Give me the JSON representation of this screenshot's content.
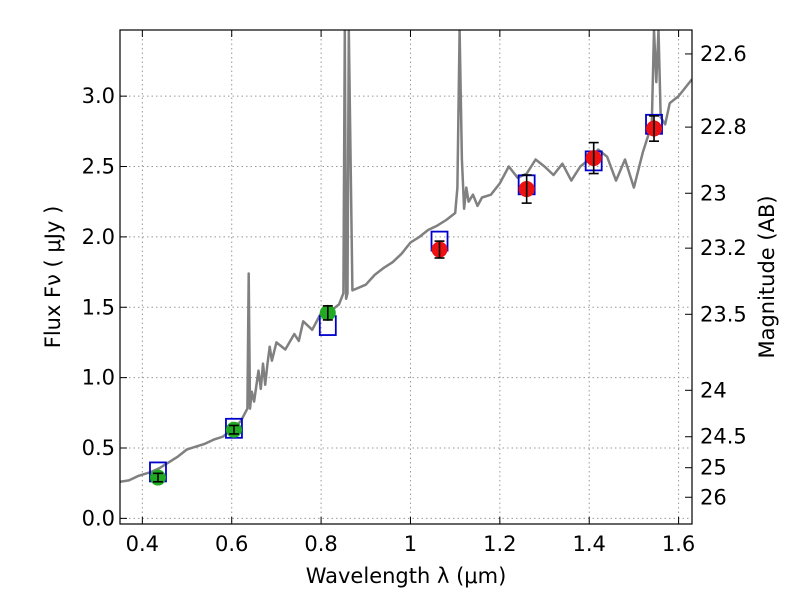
{
  "chart_data": {
    "type": "scatter",
    "title": "",
    "xlabel": "Wavelength  λ (μm)",
    "ylabel": "Flux  Fν  ( μJy )",
    "y2label": "Magnitude (AB)",
    "xlim": [
      0.35,
      1.63
    ],
    "ylim": [
      -0.04,
      3.47
    ],
    "grid": true,
    "x_ticks": [
      {
        "value": 0.4,
        "label": "0.4"
      },
      {
        "value": 0.6,
        "label": "0.6"
      },
      {
        "value": 0.8,
        "label": "0.8"
      },
      {
        "value": 1.0,
        "label": "1"
      },
      {
        "value": 1.2,
        "label": "1.2"
      },
      {
        "value": 1.4,
        "label": "1.4"
      },
      {
        "value": 1.6,
        "label": "1.6"
      }
    ],
    "y_ticks": [
      {
        "value": 0.0,
        "label": "0.0"
      },
      {
        "value": 0.5,
        "label": "0.5"
      },
      {
        "value": 1.0,
        "label": "1.0"
      },
      {
        "value": 1.5,
        "label": "1.5"
      },
      {
        "value": 2.0,
        "label": "2.0"
      },
      {
        "value": 2.5,
        "label": "2.5"
      },
      {
        "value": 3.0,
        "label": "3.0"
      }
    ],
    "y2_ticks": [
      {
        "label": "22.6",
        "flux": 3.3
      },
      {
        "label": "22.8",
        "flux": 2.78
      },
      {
        "label": "23",
        "flux": 2.31
      },
      {
        "label": "23.2",
        "flux": 1.92
      },
      {
        "label": "23.5",
        "flux": 1.45
      },
      {
        "label": "24",
        "flux": 0.91
      },
      {
        "label": "24.5",
        "flux": 0.58
      },
      {
        "label": "25",
        "flux": 0.36
      },
      {
        "label": "26",
        "flux": 0.15
      }
    ],
    "colors": {
      "model": "#808080",
      "green": "#22aa22",
      "red": "#ee1111",
      "box": "#0000cc",
      "grid": "#999999"
    },
    "series": [
      {
        "kind": "model-spectrum",
        "x": [
          0.35,
          0.37,
          0.39,
          0.4,
          0.42,
          0.44,
          0.46,
          0.48,
          0.5,
          0.52,
          0.54,
          0.56,
          0.58,
          0.6,
          0.62,
          0.635,
          0.638,
          0.641,
          0.645,
          0.65,
          0.66,
          0.665,
          0.67,
          0.675,
          0.68,
          0.685,
          0.69,
          0.7,
          0.72,
          0.74,
          0.75,
          0.76,
          0.78,
          0.8,
          0.82,
          0.84,
          0.85,
          0.853,
          0.856,
          0.859,
          0.862,
          0.87,
          0.9,
          0.92,
          0.94,
          0.96,
          0.98,
          1.0,
          1.02,
          1.04,
          1.06,
          1.08,
          1.1,
          1.105,
          1.11,
          1.115,
          1.12,
          1.125,
          1.13,
          1.14,
          1.15,
          1.16,
          1.18,
          1.2,
          1.22,
          1.24,
          1.26,
          1.28,
          1.3,
          1.32,
          1.34,
          1.36,
          1.38,
          1.4,
          1.42,
          1.44,
          1.46,
          1.48,
          1.5,
          1.52,
          1.54,
          1.545,
          1.55,
          1.555,
          1.56,
          1.57,
          1.58,
          1.6,
          1.62,
          1.63
        ],
        "y": [
          0.26,
          0.27,
          0.3,
          0.31,
          0.33,
          0.36,
          0.4,
          0.44,
          0.49,
          0.51,
          0.53,
          0.56,
          0.58,
          0.63,
          0.69,
          0.78,
          1.74,
          0.78,
          0.9,
          0.83,
          1.05,
          0.92,
          1.1,
          0.95,
          1.1,
          1.22,
          1.12,
          1.25,
          1.2,
          1.31,
          1.26,
          1.4,
          1.34,
          1.46,
          1.47,
          1.52,
          1.6,
          3.47,
          1.56,
          1.6,
          3.47,
          1.62,
          1.66,
          1.73,
          1.78,
          1.82,
          1.88,
          1.96,
          2.0,
          2.05,
          2.08,
          2.12,
          2.17,
          2.35,
          3.47,
          2.55,
          2.2,
          2.35,
          2.25,
          2.3,
          2.22,
          2.28,
          2.3,
          2.38,
          2.5,
          2.42,
          2.45,
          2.55,
          2.5,
          2.44,
          2.52,
          2.4,
          2.5,
          2.55,
          2.62,
          2.57,
          2.4,
          2.55,
          2.35,
          2.6,
          2.8,
          3.47,
          3.1,
          3.47,
          2.85,
          2.8,
          2.95,
          3.0,
          3.08,
          3.12
        ]
      },
      {
        "name": "",
        "kind": "observed",
        "color": "green",
        "x": [
          0.435,
          0.605,
          0.815
        ],
        "y": [
          0.29,
          0.63,
          1.46
        ],
        "yerr": [
          0.03,
          0.03,
          0.05
        ]
      },
      {
        "name": "",
        "kind": "observed",
        "color": "red",
        "x": [
          1.065,
          1.26,
          1.41,
          1.545
        ],
        "y": [
          1.91,
          2.34,
          2.56,
          2.77
        ],
        "yerr": [
          0.06,
          0.1,
          0.11,
          0.09
        ]
      },
      {
        "name": "",
        "kind": "model-photometry",
        "color": "box",
        "x": [
          0.435,
          0.605,
          0.815,
          1.065,
          1.26,
          1.41,
          1.545
        ],
        "y": [
          0.33,
          0.64,
          1.37,
          1.97,
          2.37,
          2.54,
          2.8
        ]
      }
    ]
  }
}
